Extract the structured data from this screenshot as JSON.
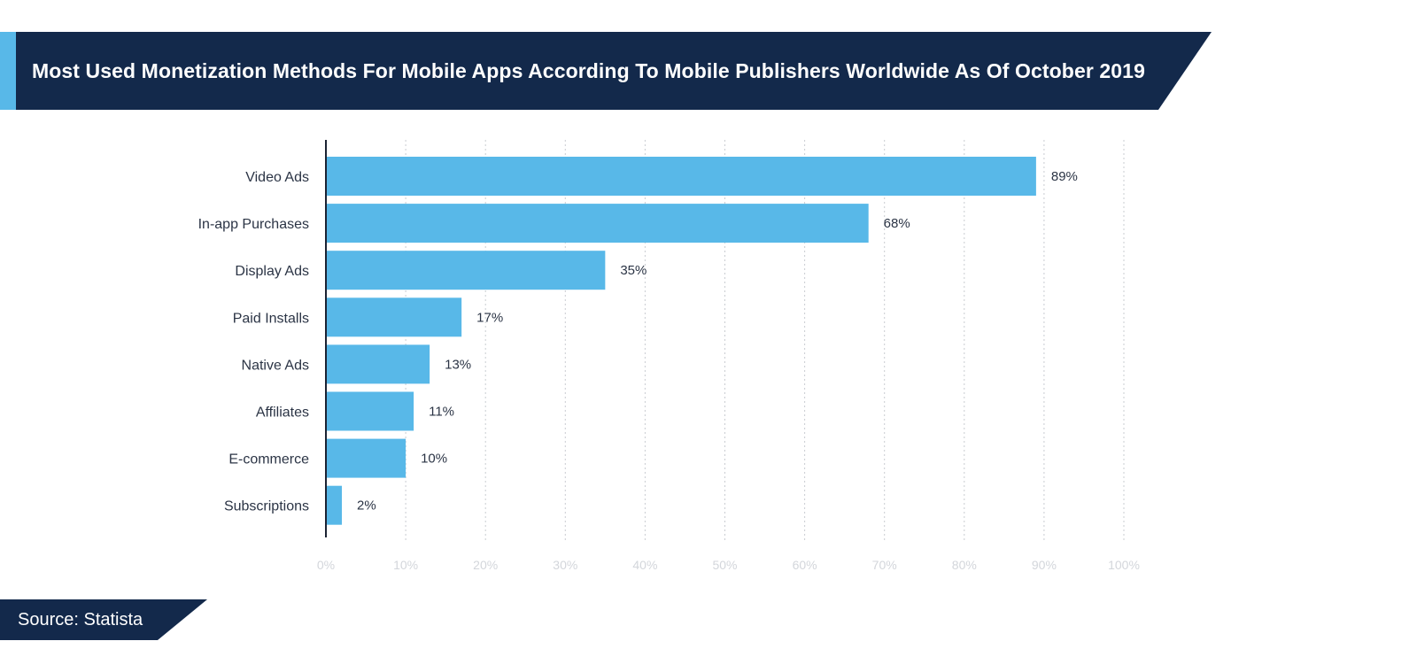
{
  "header": {
    "title": "Most Used Monetization Methods For Mobile Apps According To Mobile Publishers Worldwide As Of October 2019"
  },
  "footer": {
    "source": "Source: Statista"
  },
  "colors": {
    "navy": "#13294b",
    "accent": "#58b8e8",
    "bar": "#58b8e8",
    "grid": "#c9ccd1",
    "axis": "#1b2333",
    "tick_text": "#d3d6db",
    "label_text": "#2b3445"
  },
  "chart_data": {
    "type": "bar",
    "orientation": "horizontal",
    "title": "Most Used Monetization Methods For Mobile Apps According To Mobile Publishers Worldwide As Of October 2019",
    "categories": [
      "Video Ads",
      "In-app Purchases",
      "Display Ads",
      "Paid Installs",
      "Native Ads",
      "Affiliates",
      "E-commerce",
      "Subscriptions"
    ],
    "values": [
      89,
      68,
      35,
      17,
      13,
      11,
      10,
      2
    ],
    "value_labels": [
      "89%",
      "68%",
      "35%",
      "17%",
      "13%",
      "11%",
      "10%",
      "2%"
    ],
    "xlim": [
      0,
      100
    ],
    "x_ticks": [
      0,
      10,
      20,
      30,
      40,
      50,
      60,
      70,
      80,
      90,
      100
    ],
    "x_tick_labels": [
      "0%",
      "10%",
      "20%",
      "30%",
      "40%",
      "50%",
      "60%",
      "70%",
      "80%",
      "90%",
      "100%"
    ],
    "grid": "vertical-dotted",
    "legend": "none"
  }
}
